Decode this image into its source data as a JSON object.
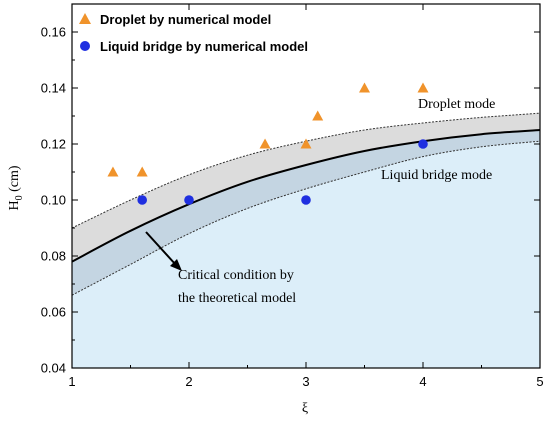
{
  "chart_data": {
    "type": "scatter",
    "xlabel": "ξ",
    "ylabel_main": "H",
    "ylabel_sub": "0",
    "ylabel_unit": " (cm)",
    "xlim": [
      1,
      5
    ],
    "ylim": [
      0.04,
      0.17
    ],
    "xticks": [
      "1",
      "2",
      "3",
      "4",
      "5"
    ],
    "yticks": [
      "0.04",
      "0.06",
      "0.08",
      "0.10",
      "0.12",
      "0.14",
      "0.16"
    ],
    "xtick_values": [
      1,
      2,
      3,
      4,
      5
    ],
    "ytick_values": [
      0.04,
      0.06,
      0.08,
      0.1,
      0.12,
      0.14,
      0.16
    ],
    "grid": false,
    "legend_position": "top-left",
    "series": [
      {
        "name": "Droplet by numerical model",
        "marker": "triangle",
        "color": "#F0932B",
        "x": [
          1.35,
          1.6,
          2.65,
          3.0,
          3.1,
          3.5,
          4.0
        ],
        "y": [
          0.11,
          0.11,
          0.12,
          0.12,
          0.13,
          0.14,
          0.14
        ]
      },
      {
        "name": "Liquid bridge by numerical model",
        "marker": "circle",
        "color": "#1F2FE0",
        "x": [
          1.6,
          2.0,
          3.0,
          4.0
        ],
        "y": [
          0.1,
          0.1,
          0.1,
          0.12
        ]
      }
    ],
    "curves": {
      "x": [
        1.0,
        1.5,
        2.0,
        2.5,
        3.0,
        3.5,
        4.0,
        4.5,
        5.0
      ],
      "critical": [
        0.078,
        0.089,
        0.0985,
        0.1065,
        0.1125,
        0.1175,
        0.121,
        0.1235,
        0.125
      ],
      "upper": [
        0.09,
        0.1,
        0.109,
        0.116,
        0.121,
        0.125,
        0.1275,
        0.1295,
        0.131
      ],
      "lower": [
        0.066,
        0.077,
        0.088,
        0.097,
        0.104,
        0.11,
        0.1155,
        0.119,
        0.121
      ]
    },
    "annotations": {
      "droplet_mode": "Droplet mode",
      "liquid_bridge_mode": "Liquid bridge mode",
      "critical_line1": "Critical condition by",
      "critical_line2": "the theoretical model"
    },
    "colors": {
      "band": "#DCDCDC",
      "band_overlap": "#C4D5E2",
      "liquid_region": "#DCEEF9",
      "critical_line": "#000000",
      "bound_line": "#333333"
    }
  }
}
